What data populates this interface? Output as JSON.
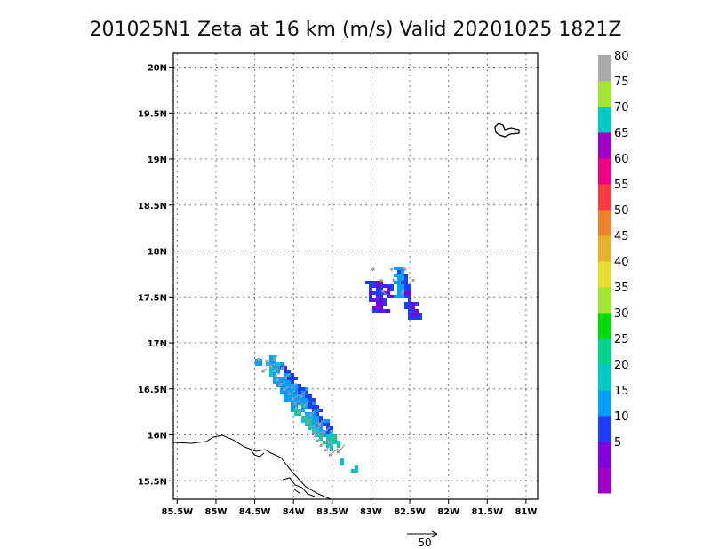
{
  "chart_data": {
    "type": "heatmap",
    "title": "201025N1  Zeta at 16 km (m/s) Valid 20201025  1821Z",
    "x_range": [
      -85.55,
      -80.85
    ],
    "y_range": [
      15.3,
      20.15
    ],
    "x_ticks": [
      {
        "value": -85.5,
        "label": "85.5W"
      },
      {
        "value": -85.0,
        "label": "85W"
      },
      {
        "value": -84.5,
        "label": "84.5W"
      },
      {
        "value": -84.0,
        "label": "84W"
      },
      {
        "value": -83.5,
        "label": "83.5W"
      },
      {
        "value": -83.0,
        "label": "83W"
      },
      {
        "value": -82.5,
        "label": "82.5W"
      },
      {
        "value": -82.0,
        "label": "82W"
      },
      {
        "value": -81.5,
        "label": "81.5W"
      },
      {
        "value": -81.0,
        "label": "81W"
      }
    ],
    "y_ticks": [
      {
        "value": 15.5,
        "label": "15.5N"
      },
      {
        "value": 16.0,
        "label": "16N"
      },
      {
        "value": 16.5,
        "label": "16.5N"
      },
      {
        "value": 17.0,
        "label": "17N"
      },
      {
        "value": 17.5,
        "label": "17.5N"
      },
      {
        "value": 18.0,
        "label": "18N"
      },
      {
        "value": 18.5,
        "label": "18.5N"
      },
      {
        "value": 19.0,
        "label": "19N"
      },
      {
        "value": 19.5,
        "label": "19.5N"
      },
      {
        "value": 20.0,
        "label": "20N"
      }
    ],
    "grid": true,
    "legend": "right",
    "colorbar": [
      {
        "color": "#a000c8",
        "label": ""
      },
      {
        "color": "#8200dc",
        "label": "5"
      },
      {
        "color": "#1e3cff",
        "label": "10"
      },
      {
        "color": "#00a0ff",
        "label": "15"
      },
      {
        "color": "#00c8c8",
        "label": "20"
      },
      {
        "color": "#00d28c",
        "label": "25"
      },
      {
        "color": "#00dc00",
        "label": "30"
      },
      {
        "color": "#a0e632",
        "label": "35"
      },
      {
        "color": "#e6dc32",
        "label": "40"
      },
      {
        "color": "#e6af2d",
        "label": "45"
      },
      {
        "color": "#f08228",
        "label": "50"
      },
      {
        "color": "#fa3c3c",
        "label": "55"
      },
      {
        "color": "#f00082",
        "label": "60"
      },
      {
        "color": "#a000c8",
        "label": "65"
      },
      {
        "color": "#00c8c8",
        "label": "70"
      },
      {
        "color": "#a0e632",
        "label": "75"
      },
      {
        "color": "#aaaaaa",
        "label": "80"
      }
    ],
    "wind_reference": {
      "value": 50,
      "label": "50"
    },
    "features": [
      {
        "name": "northern-cluster",
        "center_lon": -82.72,
        "center_lat": 17.55,
        "peak_value": 12
      },
      {
        "name": "southern-band",
        "start_lon": -84.3,
        "start_lat": 16.82,
        "end_lon": -83.45,
        "end_lat": 15.85,
        "peak_value": 22
      }
    ]
  }
}
